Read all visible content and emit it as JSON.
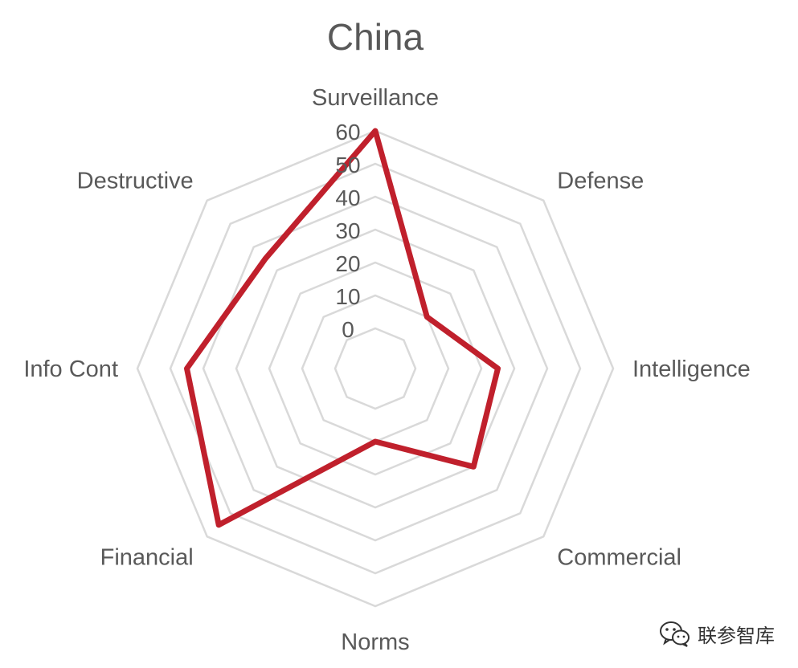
{
  "chart_data": {
    "type": "radar",
    "title": "China",
    "categories": [
      "Surveillance",
      "Defense",
      "Intelligence",
      "Commercial",
      "Norms",
      "Financial",
      "Info Cont",
      "Destructive"
    ],
    "rlim": [
      0,
      60
    ],
    "r_ticks": [
      "0",
      "10",
      "20",
      "30",
      "40",
      "50",
      "60"
    ],
    "series": [
      {
        "values": [
          60,
          10,
          25,
          30,
          10,
          55,
          45,
          35
        ],
        "color": "#c0202c"
      }
    ],
    "grid": true,
    "legend": "none"
  },
  "watermark": {
    "text": "联参智库",
    "icon": "wechat-logo-icon"
  }
}
